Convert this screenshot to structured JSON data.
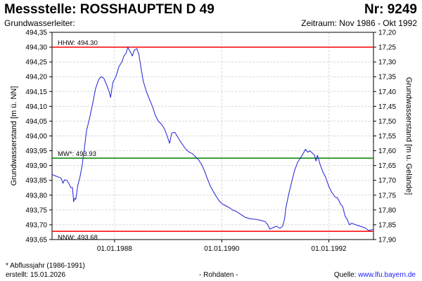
{
  "header": {
    "title": "Messstelle: ROSSHAUPTEN D 49",
    "number": "Nr: 9249",
    "aquifer_label": "Grundwasserleiter:",
    "period": "Zeitraum: Nov 1986 - Okt 1992"
  },
  "footer": {
    "footnote": "* Abflussjahr (1986-1991)",
    "created": "erstellt:  15.01.2026",
    "raw_data": "- Rohdaten -",
    "source_prefix": "Quelle: ",
    "source_link": "www.lfu.bayern.de"
  },
  "colors": {
    "series": "#1f1fd6",
    "max_line": "#ff0000",
    "min_line": "#ff0000",
    "mean_line": "#008000",
    "grid": "#d8d8d8"
  },
  "chart_data": {
    "type": "line",
    "title": "",
    "xlabel": "",
    "ylabel": "Grundwasserstand [m ü. NN]",
    "y2label": "Grundwasserstand [m u. Gelände]",
    "x_range": [
      "1986-11-01",
      "1992-10-31"
    ],
    "x_ticks": [
      {
        "date": "1988-01-01",
        "label": "01.01.1988"
      },
      {
        "date": "1990-01-01",
        "label": "01.01.1990"
      },
      {
        "date": "1992-01-01",
        "label": "01.01.1992"
      }
    ],
    "ylim": [
      493.65,
      494.35
    ],
    "y_ticks": [
      "493,65",
      "493,70",
      "493,75",
      "493,80",
      "493,85",
      "493,90",
      "493,95",
      "494,00",
      "494,05",
      "494,10",
      "494,15",
      "494,20",
      "494,25",
      "494,30",
      "494,35"
    ],
    "y2lim": [
      17.9,
      17.2
    ],
    "y2_ticks": [
      "17,90",
      "17,85",
      "17,80",
      "17,75",
      "17,70",
      "17,65",
      "17,60",
      "17,55",
      "17,50",
      "17,45",
      "17,40",
      "17,35",
      "17,30",
      "17,25",
      "17,20"
    ],
    "grid": true,
    "reference_lines": [
      {
        "label": "HHW: 494.30",
        "value": 494.3,
        "kind": "max"
      },
      {
        "label": "MW*: 493.93",
        "value": 493.925,
        "kind": "mean"
      },
      {
        "label": "NNW: 493.68",
        "value": 493.678,
        "kind": "min"
      }
    ],
    "series": [
      {
        "values": [
          [
            "1986-11-01",
            493.87
          ],
          [
            "1986-11-20",
            493.866
          ],
          [
            "1986-12-10",
            493.862
          ],
          [
            "1987-01-01",
            493.858
          ],
          [
            "1987-01-15",
            493.84
          ],
          [
            "1987-01-25",
            493.852
          ],
          [
            "1987-02-10",
            493.85
          ],
          [
            "1987-02-25",
            493.838
          ],
          [
            "1987-03-10",
            493.825
          ],
          [
            "1987-03-20",
            493.826
          ],
          [
            "1987-03-28",
            493.778
          ],
          [
            "1987-04-05",
            493.79
          ],
          [
            "1987-04-12",
            493.786
          ],
          [
            "1987-04-25",
            493.832
          ],
          [
            "1987-05-10",
            493.86
          ],
          [
            "1987-05-25",
            493.9
          ],
          [
            "1987-06-10",
            493.96
          ],
          [
            "1987-06-25",
            494.02
          ],
          [
            "1987-07-15",
            494.06
          ],
          [
            "1987-08-05",
            494.11
          ],
          [
            "1987-08-25",
            494.16
          ],
          [
            "1987-09-15",
            494.19
          ],
          [
            "1987-10-01",
            494.2
          ],
          [
            "1987-10-20",
            494.195
          ],
          [
            "1987-11-10",
            494.17
          ],
          [
            "1987-11-25",
            494.15
          ],
          [
            "1987-12-05",
            494.13
          ],
          [
            "1987-12-20",
            494.18
          ],
          [
            "1988-01-10",
            494.2
          ],
          [
            "1988-02-01",
            494.235
          ],
          [
            "1988-02-20",
            494.25
          ],
          [
            "1988-03-05",
            494.27
          ],
          [
            "1988-03-20",
            494.28
          ],
          [
            "1988-04-01",
            494.3
          ],
          [
            "1988-04-10",
            494.29
          ],
          [
            "1988-04-20",
            494.282
          ],
          [
            "1988-05-01",
            494.27
          ],
          [
            "1988-05-15",
            494.29
          ],
          [
            "1988-06-01",
            494.295
          ],
          [
            "1988-06-15",
            494.275
          ],
          [
            "1988-07-01",
            494.225
          ],
          [
            "1988-07-15",
            494.185
          ],
          [
            "1988-08-05",
            494.15
          ],
          [
            "1988-08-25",
            494.125
          ],
          [
            "1988-09-15",
            494.1
          ],
          [
            "1988-10-05",
            494.07
          ],
          [
            "1988-10-25",
            494.05
          ],
          [
            "1988-11-15",
            494.04
          ],
          [
            "1988-12-05",
            494.025
          ],
          [
            "1988-12-25",
            494.0
          ],
          [
            "1989-01-10",
            493.975
          ],
          [
            "1989-01-25",
            494.01
          ],
          [
            "1989-02-15",
            494.012
          ],
          [
            "1989-03-05",
            493.998
          ],
          [
            "1989-03-20",
            493.985
          ],
          [
            "1989-04-10",
            493.97
          ],
          [
            "1989-05-01",
            493.955
          ],
          [
            "1989-05-25",
            493.945
          ],
          [
            "1989-06-15",
            493.94
          ],
          [
            "1989-07-05",
            493.93
          ],
          [
            "1989-07-25",
            493.92
          ],
          [
            "1989-08-15",
            493.905
          ],
          [
            "1989-09-05",
            493.882
          ],
          [
            "1989-09-25",
            493.855
          ],
          [
            "1989-10-15",
            493.83
          ],
          [
            "1989-11-05",
            493.812
          ],
          [
            "1989-11-25",
            493.795
          ],
          [
            "1989-12-15",
            493.78
          ],
          [
            "1990-01-05",
            493.77
          ],
          [
            "1990-01-25",
            493.765
          ],
          [
            "1990-02-20",
            493.758
          ],
          [
            "1990-03-15",
            493.75
          ],
          [
            "1990-04-10",
            493.745
          ],
          [
            "1990-05-10",
            493.735
          ],
          [
            "1990-06-10",
            493.725
          ],
          [
            "1990-07-15",
            493.72
          ],
          [
            "1990-08-20",
            493.718
          ],
          [
            "1990-09-25",
            493.715
          ],
          [
            "1990-10-25",
            493.71
          ],
          [
            "1990-11-10",
            493.7
          ],
          [
            "1990-11-25",
            493.685
          ],
          [
            "1990-12-15",
            493.69
          ],
          [
            "1991-01-10",
            493.695
          ],
          [
            "1991-02-01",
            493.688
          ],
          [
            "1991-02-20",
            493.695
          ],
          [
            "1991-03-05",
            493.72
          ],
          [
            "1991-03-15",
            493.76
          ],
          [
            "1991-04-01",
            493.8
          ],
          [
            "1991-04-20",
            493.84
          ],
          [
            "1991-05-10",
            493.88
          ],
          [
            "1991-06-01",
            493.91
          ],
          [
            "1991-06-20",
            493.925
          ],
          [
            "1991-07-10",
            493.94
          ],
          [
            "1991-07-25",
            493.955
          ],
          [
            "1991-08-10",
            493.945
          ],
          [
            "1991-08-25",
            493.95
          ],
          [
            "1991-09-10",
            493.942
          ],
          [
            "1991-09-25",
            493.935
          ],
          [
            "1991-10-05",
            493.915
          ],
          [
            "1991-10-15",
            493.935
          ],
          [
            "1991-11-01",
            493.905
          ],
          [
            "1991-11-20",
            493.88
          ],
          [
            "1991-12-10",
            493.86
          ],
          [
            "1991-12-31",
            493.83
          ],
          [
            "1992-01-20",
            493.81
          ],
          [
            "1992-02-10",
            493.795
          ],
          [
            "1992-03-01",
            493.79
          ],
          [
            "1992-03-20",
            493.77
          ],
          [
            "1992-04-05",
            493.76
          ],
          [
            "1992-04-20",
            493.73
          ],
          [
            "1992-05-05",
            493.718
          ],
          [
            "1992-05-20",
            493.7
          ],
          [
            "1992-06-05",
            493.705
          ],
          [
            "1992-07-01",
            493.7
          ],
          [
            "1992-08-01",
            493.695
          ],
          [
            "1992-09-01",
            493.69
          ],
          [
            "1992-10-01",
            493.68
          ],
          [
            "1992-10-31",
            493.685
          ]
        ]
      }
    ]
  }
}
